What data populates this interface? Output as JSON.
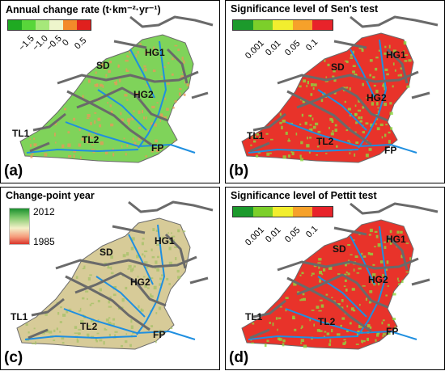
{
  "panels": [
    {
      "letter": "(a)",
      "title": "Annual change rate  (t·km⁻²·yr⁻¹)",
      "legend_colors": [
        "#1faa22",
        "#58d63a",
        "#a6e87a",
        "#eef5cc",
        "#f3892a",
        "#e0201e"
      ],
      "legend_ticks": [
        "−1.5",
        "−1.0",
        "−0.5",
        "0",
        "0.5"
      ],
      "map_fill": "#7fd35a",
      "map_accent": "#e69a5a"
    },
    {
      "letter": "(b)",
      "title": "Significance level of Sen's test",
      "legend_colors": [
        "#1c9a2c",
        "#7ccf2a",
        "#f2ee2e",
        "#f6a12a",
        "#e8232a"
      ],
      "legend_ticks": [
        "0.001",
        "0.01",
        "0.05",
        "0.1"
      ],
      "map_fill": "#e8332a",
      "map_accent": "#8cd840"
    },
    {
      "letter": "(c)",
      "title": "Change-point year",
      "gradient_labels": [
        "2012",
        "1985"
      ],
      "map_fill": "#d7cb98",
      "map_accent": "#a7c26a"
    },
    {
      "letter": "(d)",
      "title": "Significance level of Pettit test",
      "legend_colors": [
        "#1c9a2c",
        "#7ccf2a",
        "#f2ee2e",
        "#f6a12a",
        "#e8232a"
      ],
      "legend_ticks": [
        "0.001",
        "0.01",
        "0.05",
        "0.1"
      ],
      "map_fill": "#e8332a",
      "map_accent": "#8cd840"
    }
  ],
  "regions": [
    "HG1",
    "SD",
    "HG2",
    "TL1",
    "TL2",
    "FP"
  ],
  "colors": {
    "river": "#1f8fe0",
    "boundary": "#6a6a6a"
  }
}
